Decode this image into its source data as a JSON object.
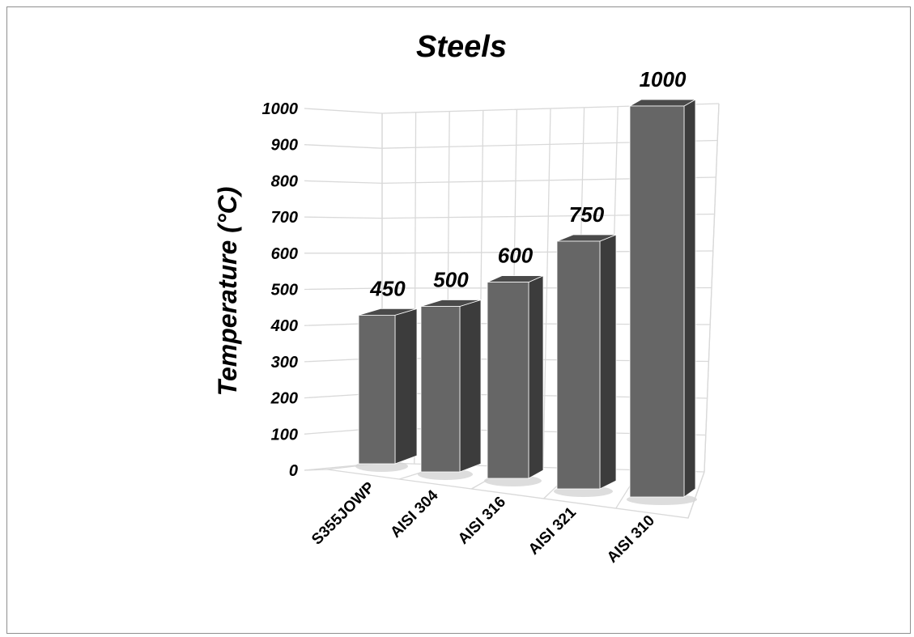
{
  "chart_data": {
    "type": "bar",
    "title": "Steels",
    "ylabel": "Temperature (°C)",
    "xlabel": "",
    "categories": [
      "S355JOWP",
      "AISI 304",
      "AISI 316",
      "AISI 321",
      "AISI 310"
    ],
    "values": [
      450,
      500,
      600,
      750,
      1000
    ],
    "ylim": [
      0,
      1000
    ],
    "yticks": [
      "0",
      "100",
      "200",
      "300",
      "400",
      "500",
      "600",
      "700",
      "800",
      "900",
      "1000"
    ],
    "data_labels": [
      "450",
      "500",
      "600",
      "750",
      "1000"
    ],
    "grid": true,
    "legend": "none",
    "style": "3d-column",
    "colors": {
      "bar_front": "#666666",
      "bar_side": "#3c3c3c",
      "bar_top": "#4a4a4a",
      "grid": "#d9d9d9"
    }
  }
}
